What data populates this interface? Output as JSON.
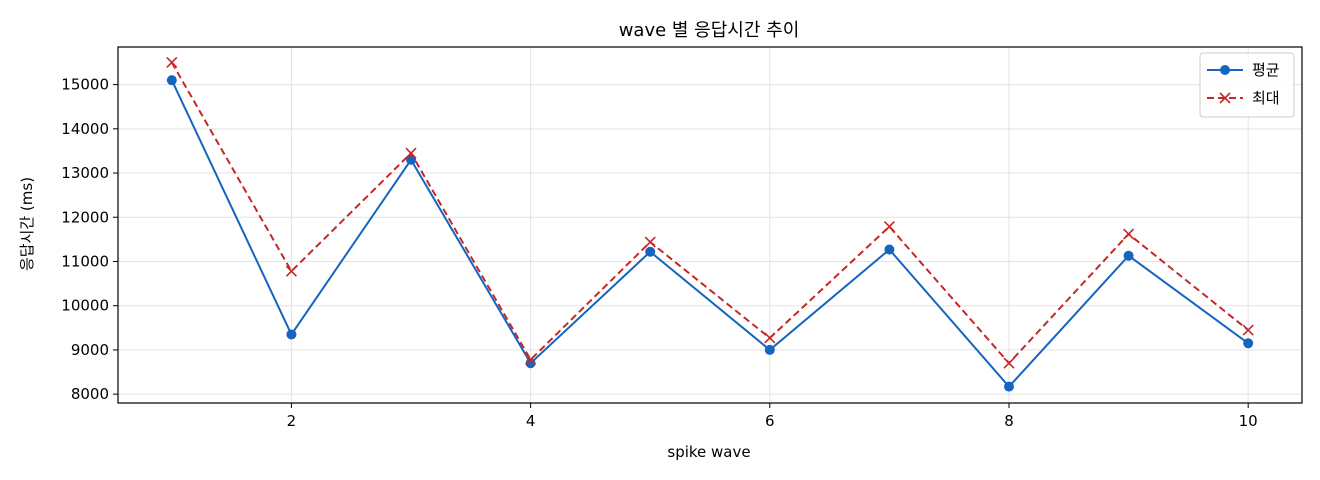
{
  "chart_data": {
    "type": "line",
    "title": "wave 별 응답시간 추이",
    "xlabel": "spike wave",
    "ylabel": "응답시간 (ms)",
    "x": [
      1,
      2,
      3,
      4,
      5,
      6,
      7,
      8,
      9,
      10
    ],
    "xlim": [
      0.55,
      10.45
    ],
    "ylim": [
      7800,
      15850
    ],
    "xticks": [
      2,
      4,
      6,
      8,
      10
    ],
    "yticks": [
      8000,
      9000,
      10000,
      11000,
      12000,
      13000,
      14000,
      15000
    ],
    "grid": true,
    "legend_position": "top-right",
    "series": [
      {
        "name": "평균",
        "color": "#1565c0",
        "line_style": "solid",
        "marker": "circle",
        "values": [
          15100,
          9350,
          13300,
          8700,
          11220,
          9000,
          11270,
          8170,
          11130,
          9150
        ]
      },
      {
        "name": "최대",
        "color": "#c62828",
        "line_style": "dashed",
        "marker": "x",
        "values": [
          15500,
          10780,
          13450,
          8780,
          11440,
          9270,
          11790,
          8700,
          11620,
          9450
        ]
      }
    ]
  }
}
